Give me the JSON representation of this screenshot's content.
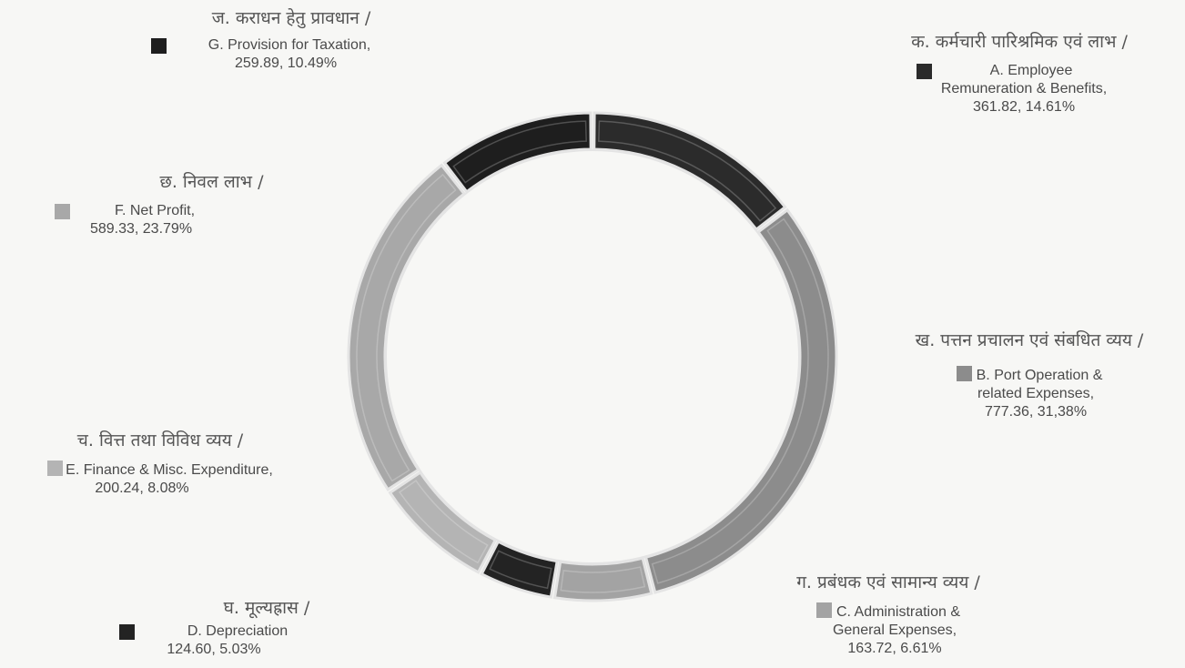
{
  "chart_data": {
    "type": "pie",
    "variant": "donut",
    "start_angle_deg": 0,
    "direction": "clockwise",
    "slices": [
      {
        "id": "A",
        "hindi": "क. कर्मचारी पारिश्रमिक एवं लाभ /",
        "label_lines": [
          "A. Employee",
          "Remuneration & Benefits,",
          "361.82, 14.61%"
        ],
        "value": 361.82,
        "percent": 14.61,
        "color": "#2b2b2b"
      },
      {
        "id": "B",
        "hindi": "ख. पत्तन प्रचालन एवं संबधित व्यय /",
        "label_lines": [
          "B. Port Operation &",
          "related Expenses,",
          "777.36, 31,38%"
        ],
        "value": 777.36,
        "percent": 31.38,
        "color": "#8c8c8c"
      },
      {
        "id": "C",
        "hindi": "ग. प्रबंधक एवं सामान्य व्यय /",
        "label_lines": [
          "C. Administration &",
          "General Expenses,",
          "163.72, 6.61%"
        ],
        "value": 163.72,
        "percent": 6.61,
        "color": "#a3a3a3"
      },
      {
        "id": "D",
        "hindi": "घ. मूल्यह्रास /",
        "label_lines": [
          "D. Depreciation",
          "124.60, 5.03%"
        ],
        "value": 124.6,
        "percent": 5.03,
        "color": "#232323"
      },
      {
        "id": "E",
        "hindi": "च. वित्त तथा विविध व्यय /",
        "label_lines": [
          "E. Finance & Misc. Expenditure,",
          "200.24, 8.08%"
        ],
        "value": 200.24,
        "percent": 8.08,
        "color": "#b4b4b4"
      },
      {
        "id": "F",
        "hindi": "छ. निवल लाभ /",
        "label_lines": [
          "F. Net Profit,",
          "589.33, 23.79%"
        ],
        "value": 589.33,
        "percent": 23.79,
        "color": "#a8a8a8"
      },
      {
        "id": "G",
        "hindi": "ज. कराधन हेतु प्रावधान /",
        "label_lines": [
          "G. Provision for Taxation,",
          "259.89, 10.49%"
        ],
        "value": 259.89,
        "percent": 10.49,
        "color": "#1e1e1e"
      }
    ]
  },
  "colors": {
    "background": "#f7f7f5",
    "slice_outline": "#e4e4e4"
  }
}
